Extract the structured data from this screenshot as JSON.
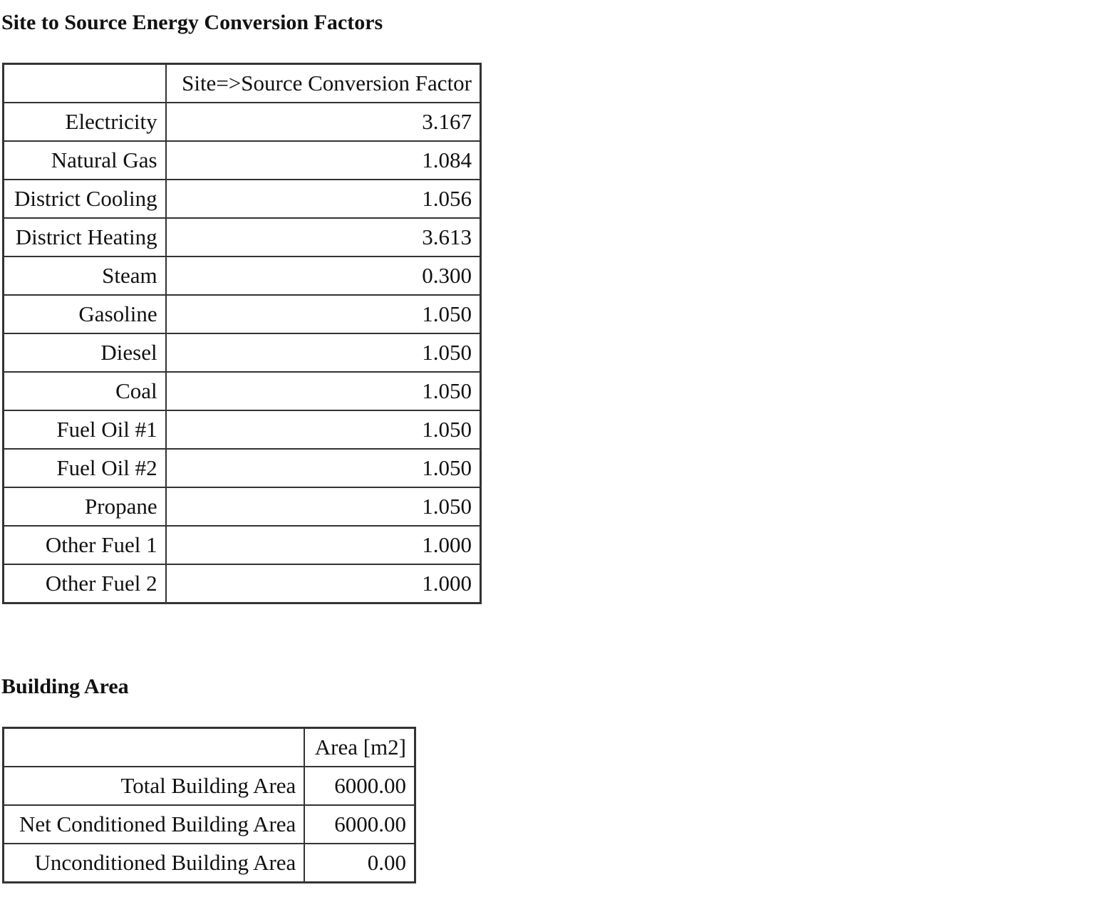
{
  "sections": [
    {
      "title": "Site to Source Energy Conversion Factors",
      "column_header": "Site=>Source Conversion Factor",
      "rows": [
        {
          "label": "Electricity",
          "value": "3.167"
        },
        {
          "label": "Natural Gas",
          "value": "1.084"
        },
        {
          "label": "District Cooling",
          "value": "1.056"
        },
        {
          "label": "District Heating",
          "value": "3.613"
        },
        {
          "label": "Steam",
          "value": "0.300"
        },
        {
          "label": "Gasoline",
          "value": "1.050"
        },
        {
          "label": "Diesel",
          "value": "1.050"
        },
        {
          "label": "Coal",
          "value": "1.050"
        },
        {
          "label": "Fuel Oil #1",
          "value": "1.050"
        },
        {
          "label": "Fuel Oil #2",
          "value": "1.050"
        },
        {
          "label": "Propane",
          "value": "1.050"
        },
        {
          "label": "Other Fuel 1",
          "value": "1.000"
        },
        {
          "label": "Other Fuel 2",
          "value": "1.000"
        }
      ]
    },
    {
      "title": "Building Area",
      "column_header": "Area [m2]",
      "rows": [
        {
          "label": "Total Building Area",
          "value": "6000.00"
        },
        {
          "label": "Net Conditioned Building Area",
          "value": "6000.00"
        },
        {
          "label": "Unconditioned Building Area",
          "value": "0.00"
        }
      ]
    }
  ]
}
